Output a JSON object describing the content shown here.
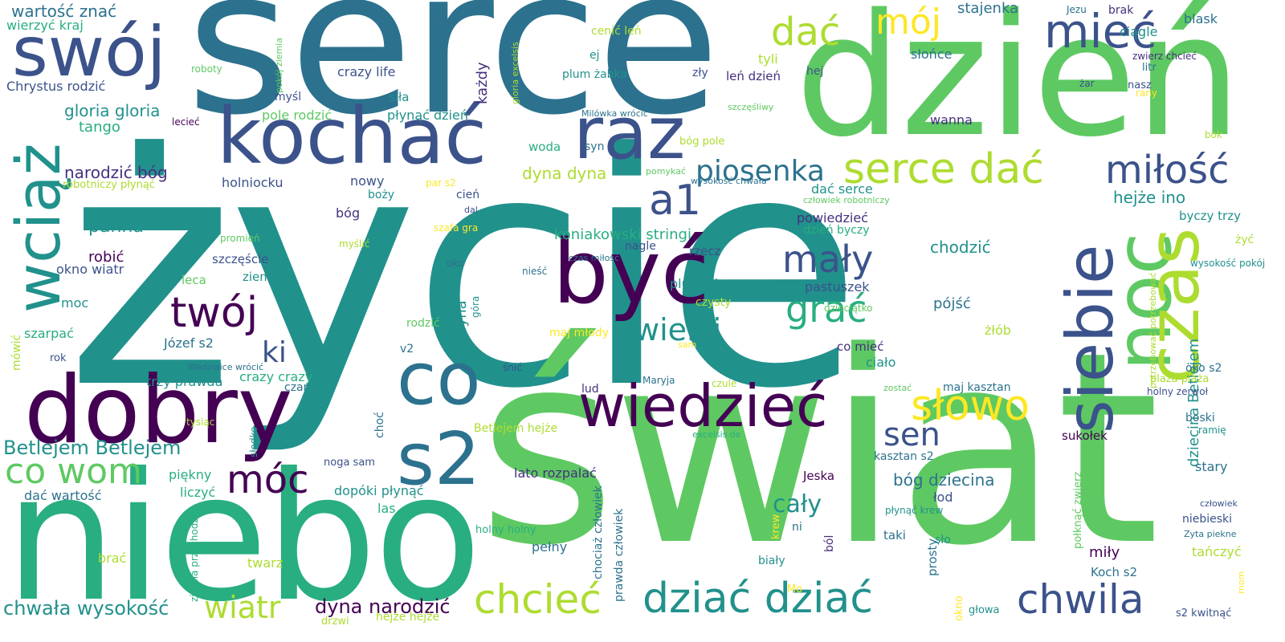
{
  "words": {
    "zycie": "życie",
    "serce": "serce",
    "swiat": "świat",
    "dzien": "dzień",
    "niebo": "niebo",
    "dobry": "dobry",
    "kochac": "kochać",
    "byc": "być",
    "raz": "raz",
    "swoj": "swój",
    "co": "co",
    "wciaz": "wciąż",
    "noc": "noc",
    "czas": "czas",
    "siebie": "siebie",
    "wiedziec": "wiedzieć",
    "s2": "s2",
    "miec": "mieć",
    "dac": "dać",
    "moj": "mój",
    "serce_dac": "serce dać",
    "milosc": "miłość",
    "piosenka": "piosenka",
    "maly": "mały",
    "twoj": "twój",
    "a1": "a1",
    "grac": "grać",
    "wielki": "wielki",
    "ki": "ki",
    "slowo": "słowo",
    "sen": "sen",
    "co_wom": "co wom",
    "moc_big": "móc",
    "chciec": "chcieć",
    "dziac_dziac": "dziać dziać",
    "chwila": "chwila",
    "wiatr": "wiatr",
    "caly": "cały",
    "betlejem_betlejem": "Betlejem Betlejem",
    "wartosc_znac": "wartość znać",
    "wierzyc_kraj": "wierzyć kraj",
    "chrystus_rodzic": "Chrystus rodzić",
    "gloria_gloria": "gloria gloria",
    "tango": "tango",
    "narodzic_bog": "narodzić bóg",
    "holniocku": "holniocku",
    "panna": "panna",
    "robic": "robić",
    "okno_wiatr": "okno wiatr",
    "moc": "moc",
    "szarpac": "szarpać",
    "rok": "rok",
    "mowic": "mówić",
    "jozef_s2": "Józef s2",
    "wadowice_wrocic": "Wadowice wrócić",
    "trzy_prawda": "trzy prawda",
    "crazy_crazy": "crazy crazy",
    "czar": "czar",
    "choc": "choć",
    "dac_wartosc": "dać wartość",
    "piekny": "piękny",
    "liczyc": "liczyć",
    "brac": "brać",
    "twarz": "twarz",
    "chwala_wysokosc": "chwała wysokość",
    "dyna_narodzic": "dyna narodzić",
    "hejze_hejze": "hejże hejże",
    "drzwi": "drzwi",
    "noga_sam": "noga sam",
    "slodko": "słodko",
    "ziemia_przychodzic": "ziemia przychodzić",
    "dopoki_plynac": "dopóki płynąć",
    "las": "las",
    "holny_holny": "holny holny",
    "lato_rozpalac": "lato rozpalać",
    "pelny": "pełny",
    "prawda_czlowiek": "prawda człowiek",
    "chociaz_czlowiek": "chociaż człowiek",
    "betlejem_hejze": "Betlejem hejże",
    "jeska": "Jeska",
    "krew": "krew",
    "bialy": "biały",
    "bol": "ból",
    "ni": "ni",
    "mo": "Mo",
    "zawsze_roboty": "roboty",
    "pokoj_ziemia": "pokój ziemia",
    "lecie": "lecieć",
    "robotniczy_plynac": "robotniczy płynąć",
    "bozy": "boży",
    "par_s2": "par s2",
    "cien": "cień",
    "dal": "dal",
    "bog": "bóg",
    "nowy": "nowy",
    "promien": "promień",
    "myslic": "myślić",
    "szczescie": "szczęście",
    "ziemia": "ziemia",
    "leca": "leca",
    "szafa_gra": "szafa gra",
    "oko": "oko",
    "niesc": "nieść",
    "ino_dyna": "ino dyna",
    "gora": "góra",
    "rodzic": "rodzić",
    "v2": "v2",
    "snic": "śnić",
    "maj_mlody": "maj młody",
    "sam": "sam",
    "maryja": "Maryja",
    "lud": "lud",
    "czule": "czule",
    "tysiac": "tysiąc",
    "crazy_life": "crazy life",
    "sila": "siła",
    "mysl": "myśl",
    "pole_rodzic": "pole rodzić",
    "plynac_dzien": "płynąć dzień",
    "kazdy": "każdy",
    "gloria_excelsis": "gloria excelsis",
    "cenic_len": "cenić leń",
    "ej": "ej",
    "plum_zabka": "plum żabka",
    "milowka_wrocic": "Milówka wrócić",
    "syn": "syn",
    "woda": "woda",
    "dyna_dyna": "dyna dyna",
    "pomykac": "pomykać",
    "koniakowski_stringi": "koniakowski stringi",
    "nagle": "nagle",
    "czas_milosc": "czas miłość",
    "rzecz": "rzecz",
    "plum_plum": "plum plum",
    "czysty": "czysty",
    "tyli": "tyli",
    "hej": "hej",
    "zly": "zły",
    "len_dzien": "leń dzień",
    "szczesliwy": "szczęśliwy",
    "bog_pole": "bóg pole",
    "wysokosc_chwala": "wysokość chwała",
    "czlowiek_robotniczy": "człowiek robotniczy",
    "dac_serce": "dać serce",
    "powiedziec": "powiedzieć",
    "dzien_byczy": "dzień byczy",
    "pastuszek": "pastuszek",
    "dzieciatko": "dzieciątko",
    "co_miec": "co mieć",
    "cialo": "ciało",
    "stajenka": "stajenka",
    "slonce": "słońce",
    "wanna": "wanna",
    "chodzic": "chodzić",
    "pojsc": "pójść",
    "zlob": "żłób",
    "hejze_ino": "hejże ino",
    "jezu": "Jezu",
    "brak": "brak",
    "blask": "blask",
    "ciagle": "ciągle",
    "zwierz_chciec": "zwierz chcieć",
    "litr": "litr",
    "zar": "żar",
    "nasz": "nasz",
    "rany": "rany",
    "bok": "bok",
    "byczy_trzy": "byczy trzy",
    "zyc": "żyć",
    "wysokosc_pokoj": "wysokość pokój",
    "potrzebowac": "potrzebować potrzebować",
    "dziecina_betlejem": "dziecina Betlejem",
    "oko_s2": "oko s2",
    "plaza_plaza": "plaża plaża",
    "holny_zerwol": "holny zerwoł",
    "zostac": "zostać",
    "maj_kasztan": "maj kasztan",
    "boski": "boski",
    "ramie": "ramię",
    "excelsis_de": "excelsis de",
    "sukolek": "sukołek",
    "stary": "stary",
    "kasztan_s2": "kasztan s2",
    "bog_dziecina": "bóg dziecina",
    "lod": "łod",
    "polknac_zwierz": "połknąć zwierz",
    "plynac_krew": "płynąć krew",
    "czlowiek": "człowiek",
    "niebieski": "niebieski",
    "zyta_piekne": "Zyta piekne",
    "taki": "taki",
    "prosty": "prosty",
    "slo": "sło",
    "mily": "miły",
    "tanczyc": "tańczyć",
    "koch_s2": "Koch s2",
    "okno": "okno",
    "glowa": "głowa",
    "s2_kwitnac": "s2 kwitnąć",
    "mom": "mom"
  }
}
